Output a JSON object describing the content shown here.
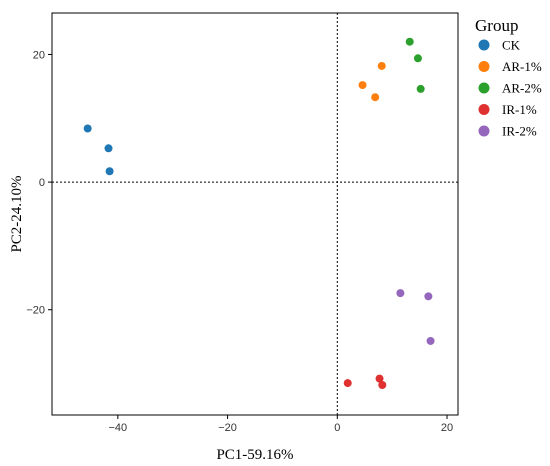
{
  "chart_data": {
    "type": "scatter",
    "xlabel": "PC1-59.16%",
    "ylabel": "PC2-24.10%",
    "xlim": [
      -52,
      22
    ],
    "ylim": [
      -36.5,
      26.5
    ],
    "xticks": [
      -40,
      -20,
      0,
      20
    ],
    "yticks": [
      -20,
      0,
      20
    ],
    "reference_lines": {
      "x": 0,
      "y": 0,
      "style": "dotted"
    },
    "grid": false,
    "legend": {
      "title": "Group",
      "position": "right"
    },
    "series": [
      {
        "name": "CK",
        "color": "#1f77b4",
        "points": [
          [
            -45.5,
            8.4
          ],
          [
            -41.7,
            5.3
          ],
          [
            -41.5,
            1.7
          ]
        ]
      },
      {
        "name": "AR-1%",
        "color": "#ff7f0e",
        "points": [
          [
            8.1,
            18.2
          ],
          [
            4.6,
            15.2
          ],
          [
            6.9,
            13.3
          ]
        ]
      },
      {
        "name": "AR-2%",
        "color": "#2ca02c",
        "points": [
          [
            13.2,
            22.0
          ],
          [
            14.7,
            19.4
          ],
          [
            15.2,
            14.6
          ]
        ]
      },
      {
        "name": "IR-1%",
        "color": "#e03131",
        "points": [
          [
            1.9,
            -31.5
          ],
          [
            7.7,
            -30.8
          ],
          [
            8.2,
            -31.8
          ]
        ]
      },
      {
        "name": "IR-2%",
        "color": "#9467bd",
        "points": [
          [
            11.5,
            -17.4
          ],
          [
            16.6,
            -17.9
          ],
          [
            17.0,
            -24.9
          ]
        ]
      }
    ]
  }
}
